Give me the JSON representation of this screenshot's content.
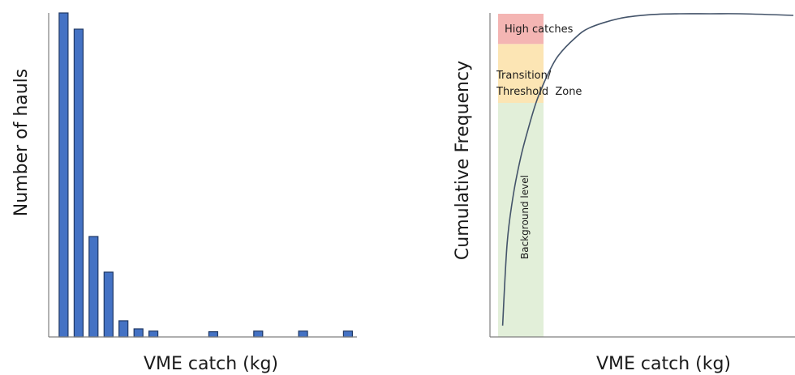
{
  "chart_data": [
    {
      "type": "bar",
      "xlabel": "VME catch (kg)",
      "ylabel": "Number of hauls",
      "x_unit": "bin index (unlabelled axis)",
      "x": [
        1,
        2,
        3,
        4,
        5,
        6,
        7,
        11,
        14,
        17,
        20
      ],
      "values": [
        100,
        95,
        31,
        20,
        5,
        2.5,
        1.8,
        1.6,
        1.8,
        1.8,
        1.8
      ],
      "xlim": [
        0,
        20.6
      ],
      "ylim": [
        0,
        100
      ]
    },
    {
      "type": "line",
      "xlabel": "VME catch (kg)",
      "ylabel": "Cumulative Frequency",
      "x": [
        0.3,
        0.6,
        1.0,
        1.5,
        2.0,
        2.5,
        3.0,
        3.5,
        4.0,
        5.0,
        6.0,
        8.0,
        10.0,
        12.0,
        14.0,
        16.0,
        19.5
      ],
      "values": [
        0.02,
        0.28,
        0.43,
        0.55,
        0.64,
        0.72,
        0.78,
        0.83,
        0.87,
        0.92,
        0.955,
        0.985,
        0.997,
        1.0,
        1.0,
        1.0,
        0.995
      ],
      "xlim": [
        0,
        19.5
      ],
      "ylim": [
        0,
        1.0
      ],
      "zones": [
        {
          "label": "Background level",
          "ymin": 0.0,
          "ymax": 0.72,
          "color": "#e2efd9"
        },
        {
          "label_lines": [
            "Transition/",
            "Threshold  Zone"
          ],
          "ymin": 0.72,
          "ymax": 0.905,
          "color": "#fce5b4"
        },
        {
          "label": "High catches",
          "ymin": 0.905,
          "ymax": 1.0,
          "color": "#f4b5b3"
        }
      ],
      "zone_xmax": 3.0
    }
  ]
}
